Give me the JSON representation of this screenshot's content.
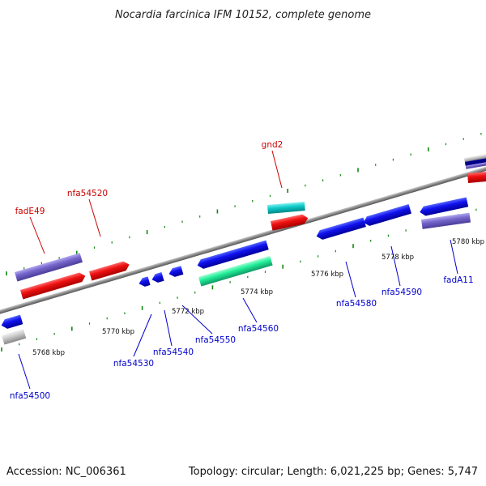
{
  "title": "Nocardia farcinica IFM 10152, complete genome",
  "footer": {
    "accession": "Accession: NC_006361",
    "summary": "Topology: circular; Length: 6,021,225 bp; Genes: 5,747"
  },
  "colors": {
    "forward_gene": "#ee1111",
    "reverse_gene": "#1111ee",
    "label_forward": "#cc0000",
    "label_reverse": "#0000cc",
    "backbone": "#888888",
    "tick": "#118811"
  },
  "kbp_labels": [
    "5768 kbp",
    "5770 kbp",
    "5772 kbp",
    "5774 kbp",
    "5776 kbp",
    "5778 kbp",
    "5780 kbp"
  ],
  "gene_labels": [
    "fadE49",
    "nfa54520",
    "gnd2",
    "nfa54500",
    "nfa54530",
    "nfa54540",
    "nfa54550",
    "nfa54560",
    "nfa54580",
    "nfa54590",
    "fadA11"
  ]
}
